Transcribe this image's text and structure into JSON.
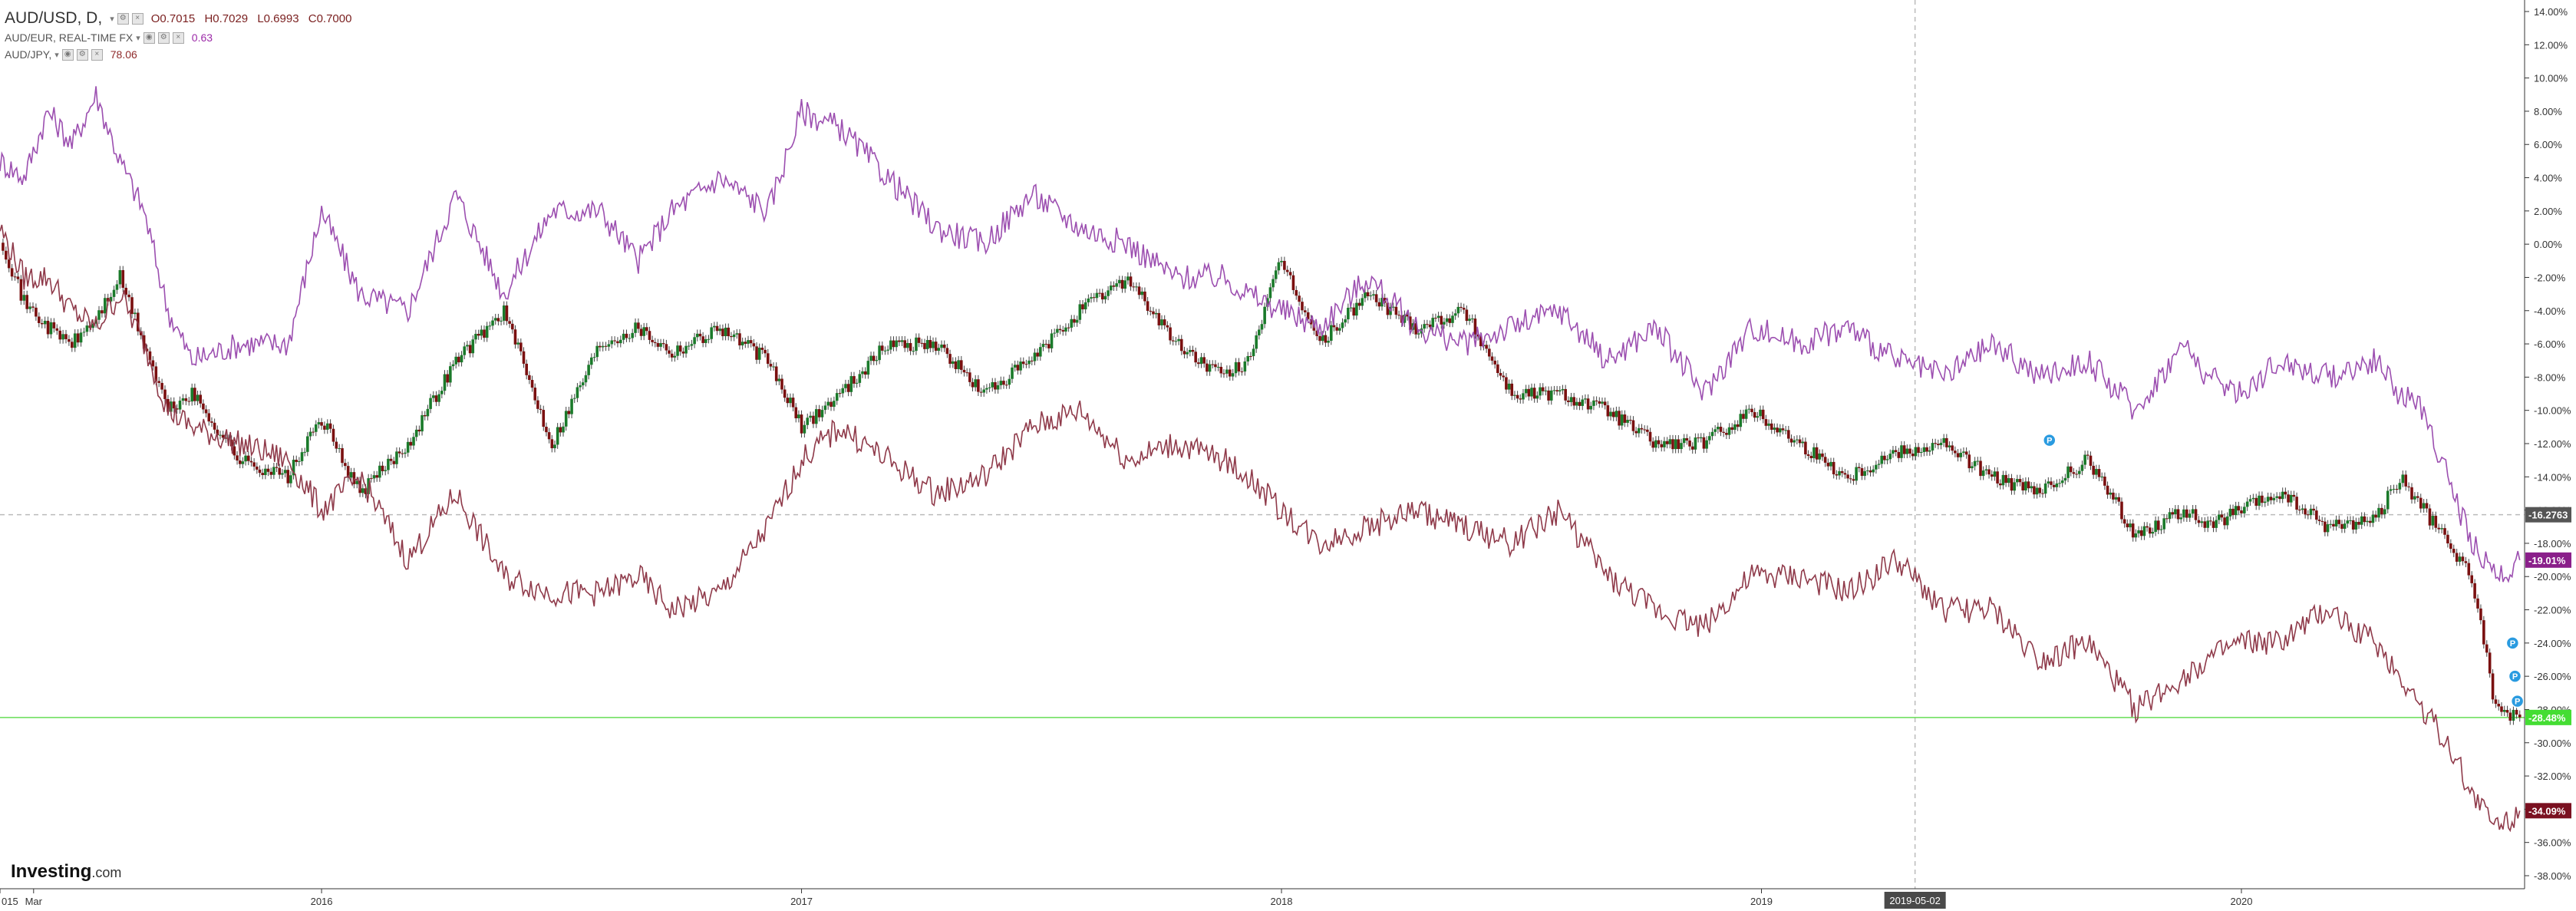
{
  "legend": {
    "main_symbol": "AUD/USD, D,",
    "ohlc": {
      "o": "O0.7015",
      "h": "H0.7029",
      "l": "L0.6993",
      "c": "C0.7000"
    },
    "series2_symbol": "AUD/EUR, REAL-TIME FX",
    "series2_value": "0.63",
    "series3_symbol": "AUD/JPY,",
    "series3_value": "78.06"
  },
  "logo": {
    "main": "Investing",
    "suffix": ".com"
  },
  "colors": {
    "up_candle": "#1a7a2a",
    "down_candle": "#7a1010",
    "aud_eur": "#9c4fb0",
    "aud_jpy": "#8f3a4a",
    "green_line": "#66dd55",
    "grid_dash": "#bbbbbb"
  },
  "chart_data": {
    "type": "line",
    "y_axis": {
      "unit": "percent",
      "ylim": [
        -38,
        14
      ],
      "ticks": [
        14,
        12,
        10,
        8,
        6,
        4,
        2,
        0,
        -2,
        -4,
        -6,
        -8,
        -10,
        -12,
        -14,
        -16,
        -18,
        -20,
        -22,
        -24,
        -26,
        -28,
        -30,
        -32,
        -34,
        -36,
        -38
      ],
      "tick_labels": [
        "14.00%",
        "12.00%",
        "10.00%",
        "8.00%",
        "6.00%",
        "4.00%",
        "2.00%",
        "0.00%",
        "-2.00%",
        "-4.00%",
        "-6.00%",
        "-8.00%",
        "-10.00%",
        "-12.00%",
        "-14.00%",
        "-16.00%",
        "-18.00%",
        "-20.00%",
        "-22.00%",
        "-24.00%",
        "-26.00%",
        "-28.00%",
        "-30.00%",
        "-32.00%",
        "-34.00%",
        "-36.00%",
        "-38.00%"
      ]
    },
    "x_axis": {
      "tick_labels": [
        "015",
        "Mar",
        "2016",
        "2017",
        "2018",
        "2019",
        "2020"
      ],
      "tick_x": [
        0,
        0.07,
        0.67,
        1.67,
        2.67,
        3.67,
        4.67
      ],
      "crosshair_label": "2019-05-02",
      "crosshair_x": 3.99,
      "xlim": [
        0,
        5.26
      ]
    },
    "price_labels": [
      {
        "label": "-16.2763",
        "value": -16.28,
        "bg": "#555555"
      },
      {
        "label": "-19.01%",
        "value": -19.01,
        "bg": "#8a1f8a"
      },
      {
        "label": "-28.48%",
        "value": -28.48,
        "bg": "#44dd33"
      },
      {
        "label": "-34.09%",
        "value": -34.09,
        "bg": "#7a1020"
      }
    ],
    "crosshair_y": -16.28,
    "green_line_y": -28.48,
    "series": [
      {
        "key": "aud_usd",
        "style": "candles",
        "x": [
          0,
          0.05,
          0.1,
          0.15,
          0.2,
          0.25,
          0.3,
          0.35,
          0.4,
          0.5,
          0.6,
          0.67,
          0.75,
          0.85,
          0.95,
          1.05,
          1.15,
          1.25,
          1.33,
          1.4,
          1.5,
          1.6,
          1.67,
          1.75,
          1.85,
          1.95,
          2.05,
          2.15,
          2.25,
          2.35,
          2.45,
          2.55,
          2.6,
          2.67,
          2.75,
          2.85,
          2.95,
          3.05,
          3.15,
          3.25,
          3.35,
          3.45,
          3.55,
          3.65,
          3.75,
          3.85,
          3.95,
          4.05,
          4.15,
          4.25,
          4.35,
          4.45,
          4.55,
          4.6,
          4.67,
          4.75,
          4.85,
          4.95,
          5.0,
          5.05,
          5.1,
          5.15,
          5.2,
          5.23,
          5.25
        ],
        "y": [
          0.5,
          -3.5,
          -5,
          -6,
          -4.5,
          -2,
          -6,
          -10,
          -9,
          -13,
          -14,
          -10.5,
          -15,
          -12,
          -7,
          -4,
          -12,
          -6,
          -5,
          -6.5,
          -5,
          -7,
          -11,
          -9,
          -6,
          -6,
          -9,
          -7,
          -4,
          -2,
          -6,
          -8,
          -7,
          -1,
          -6,
          -3,
          -5,
          -4,
          -9,
          -9,
          -10,
          -12,
          -12,
          -10,
          -12,
          -14,
          -12.5,
          -12,
          -14,
          -15,
          -13,
          -17.5,
          -16,
          -17,
          -16,
          -15,
          -17,
          -16.5,
          -14,
          -16,
          -18,
          -20,
          -28,
          -28.4,
          -28.48
        ]
      },
      {
        "key": "aud_eur",
        "style": "line",
        "x": [
          0,
          0.05,
          0.1,
          0.15,
          0.2,
          0.25,
          0.3,
          0.35,
          0.4,
          0.5,
          0.6,
          0.67,
          0.75,
          0.85,
          0.95,
          1.05,
          1.15,
          1.25,
          1.33,
          1.4,
          1.5,
          1.6,
          1.67,
          1.75,
          1.85,
          1.95,
          2.05,
          2.15,
          2.25,
          2.35,
          2.45,
          2.55,
          2.6,
          2.67,
          2.75,
          2.85,
          2.95,
          3.05,
          3.15,
          3.25,
          3.35,
          3.45,
          3.55,
          3.65,
          3.75,
          3.85,
          3.95,
          4.05,
          4.15,
          4.25,
          4.35,
          4.45,
          4.55,
          4.6,
          4.67,
          4.75,
          4.85,
          4.95,
          5.0,
          5.05,
          5.1,
          5.15,
          5.2,
          5.23,
          5.25
        ],
        "y": [
          5,
          4,
          8,
          6,
          9,
          5,
          2,
          -4,
          -7,
          -6,
          -6,
          2,
          -3,
          -4,
          3,
          -3,
          2,
          2,
          -1,
          2,
          4,
          2,
          8,
          7,
          4,
          1,
          0,
          3,
          1,
          0,
          -2,
          -2,
          -3,
          -4,
          -5,
          -2,
          -5,
          -6,
          -5,
          -4,
          -7,
          -5,
          -9,
          -5,
          -6,
          -5,
          -7,
          -8,
          -6,
          -8,
          -7,
          -10,
          -6,
          -8,
          -9,
          -7,
          -8,
          -7,
          -9,
          -10,
          -14,
          -18,
          -20,
          -19.5,
          -19.01
        ]
      },
      {
        "key": "aud_jpy",
        "style": "line",
        "x": [
          0,
          0.05,
          0.1,
          0.15,
          0.2,
          0.25,
          0.3,
          0.35,
          0.4,
          0.5,
          0.6,
          0.67,
          0.75,
          0.85,
          0.95,
          1.05,
          1.15,
          1.25,
          1.33,
          1.4,
          1.5,
          1.6,
          1.67,
          1.75,
          1.85,
          1.95,
          2.05,
          2.15,
          2.25,
          2.35,
          2.45,
          2.55,
          2.6,
          2.67,
          2.75,
          2.85,
          2.95,
          3.05,
          3.15,
          3.25,
          3.35,
          3.45,
          3.55,
          3.65,
          3.75,
          3.85,
          3.95,
          4.05,
          4.15,
          4.25,
          4.35,
          4.45,
          4.55,
          4.6,
          4.67,
          4.75,
          4.85,
          4.95,
          5.0,
          5.05,
          5.1,
          5.15,
          5.2,
          5.23,
          5.25
        ],
        "y": [
          1,
          -2,
          -2,
          -4,
          -5,
          -3,
          -6,
          -10,
          -11,
          -12,
          -13,
          -16,
          -14,
          -19,
          -15,
          -20,
          -21,
          -21,
          -20,
          -22,
          -21,
          -17,
          -13,
          -11,
          -13,
          -15,
          -14,
          -11,
          -10,
          -13,
          -12,
          -13,
          -14,
          -16,
          -18,
          -17,
          -16,
          -17,
          -18,
          -16,
          -20,
          -22,
          -23,
          -20,
          -20,
          -21,
          -19,
          -22,
          -22,
          -25,
          -24,
          -28,
          -26,
          -25,
          -24,
          -24,
          -22,
          -24,
          -26,
          -28,
          -30,
          -33,
          -35,
          -34.5,
          -34.09
        ]
      }
    ],
    "markers": [
      {
        "x": 4.27,
        "y": -11.8,
        "symbol": "P"
      },
      {
        "x": 5.235,
        "y": -24.0,
        "symbol": "P"
      },
      {
        "x": 5.24,
        "y": -26.0,
        "symbol": "P"
      },
      {
        "x": 5.245,
        "y": -27.5,
        "symbol": "P"
      }
    ]
  }
}
